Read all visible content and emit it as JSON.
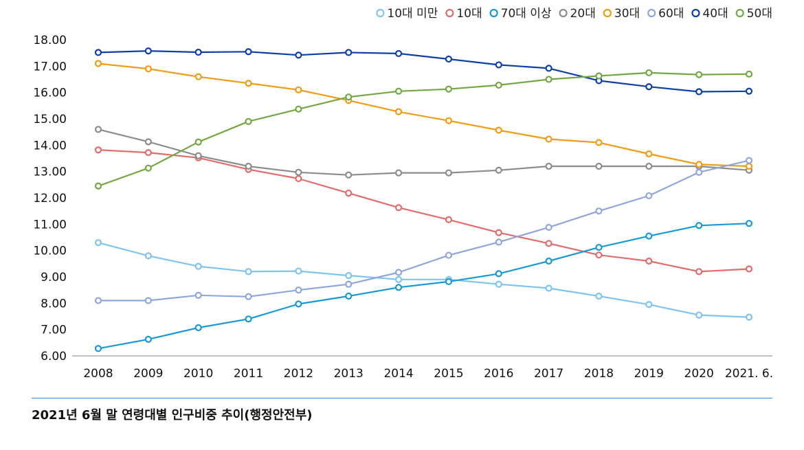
{
  "chart_data": {
    "type": "line",
    "categories": [
      "2008",
      "2009",
      "2010",
      "2011",
      "2012",
      "2013",
      "2014",
      "2015",
      "2016",
      "2017",
      "2018",
      "2019",
      "2020",
      "2021. 6."
    ],
    "ylim": [
      6,
      18
    ],
    "y_ticks": [
      "6.00",
      "7.00",
      "8.00",
      "9.00",
      "10.00",
      "11.00",
      "12.00",
      "13.00",
      "14.00",
      "15.00",
      "16.00",
      "17.00",
      "18.00"
    ],
    "legend_position": "top-right",
    "grid": false,
    "series": [
      {
        "name": "10대 미만",
        "color": "#7fc4ef",
        "values": [
          10.3,
          9.8,
          9.4,
          9.2,
          9.22,
          9.05,
          8.9,
          8.9,
          8.72,
          8.57,
          8.27,
          7.95,
          7.55,
          7.47
        ]
      },
      {
        "name": "10대",
        "color": "#e26b6b",
        "values": [
          13.82,
          13.72,
          13.52,
          13.08,
          12.73,
          12.18,
          11.63,
          11.17,
          10.68,
          10.27,
          9.83,
          9.6,
          9.2,
          9.3
        ]
      },
      {
        "name": "70대 이상",
        "color": "#1699d9",
        "values": [
          6.28,
          6.63,
          7.07,
          7.4,
          7.97,
          8.27,
          8.6,
          8.82,
          9.12,
          9.6,
          10.12,
          10.55,
          10.95,
          11.03
        ]
      },
      {
        "name": "20대",
        "color": "#8c8c8c",
        "values": [
          14.6,
          14.13,
          13.6,
          13.2,
          12.97,
          12.87,
          12.95,
          12.95,
          13.05,
          13.2,
          13.2,
          13.2,
          13.2,
          13.05
        ]
      },
      {
        "name": "30대",
        "color": "#f29b13",
        "values": [
          17.1,
          16.9,
          16.6,
          16.35,
          16.1,
          15.7,
          15.27,
          14.93,
          14.57,
          14.23,
          14.1,
          13.67,
          13.27,
          13.2
        ]
      },
      {
        "name": "60대",
        "color": "#8ea6dc",
        "values": [
          8.1,
          8.1,
          8.3,
          8.25,
          8.5,
          8.72,
          9.17,
          9.82,
          10.32,
          10.88,
          11.5,
          12.08,
          12.97,
          13.42
        ]
      },
      {
        "name": "40대",
        "color": "#0d3fa8",
        "values": [
          17.52,
          17.58,
          17.53,
          17.55,
          17.42,
          17.52,
          17.48,
          17.27,
          17.05,
          16.92,
          16.45,
          16.22,
          16.03,
          16.05
        ]
      },
      {
        "name": "50대",
        "color": "#72a844",
        "values": [
          12.45,
          13.13,
          14.12,
          14.9,
          15.37,
          15.83,
          16.05,
          16.13,
          16.28,
          16.5,
          16.63,
          16.75,
          16.68,
          16.7
        ]
      }
    ]
  },
  "caption": "2021년 6월 말 연령대별 인구비중 추이(행정안전부)"
}
